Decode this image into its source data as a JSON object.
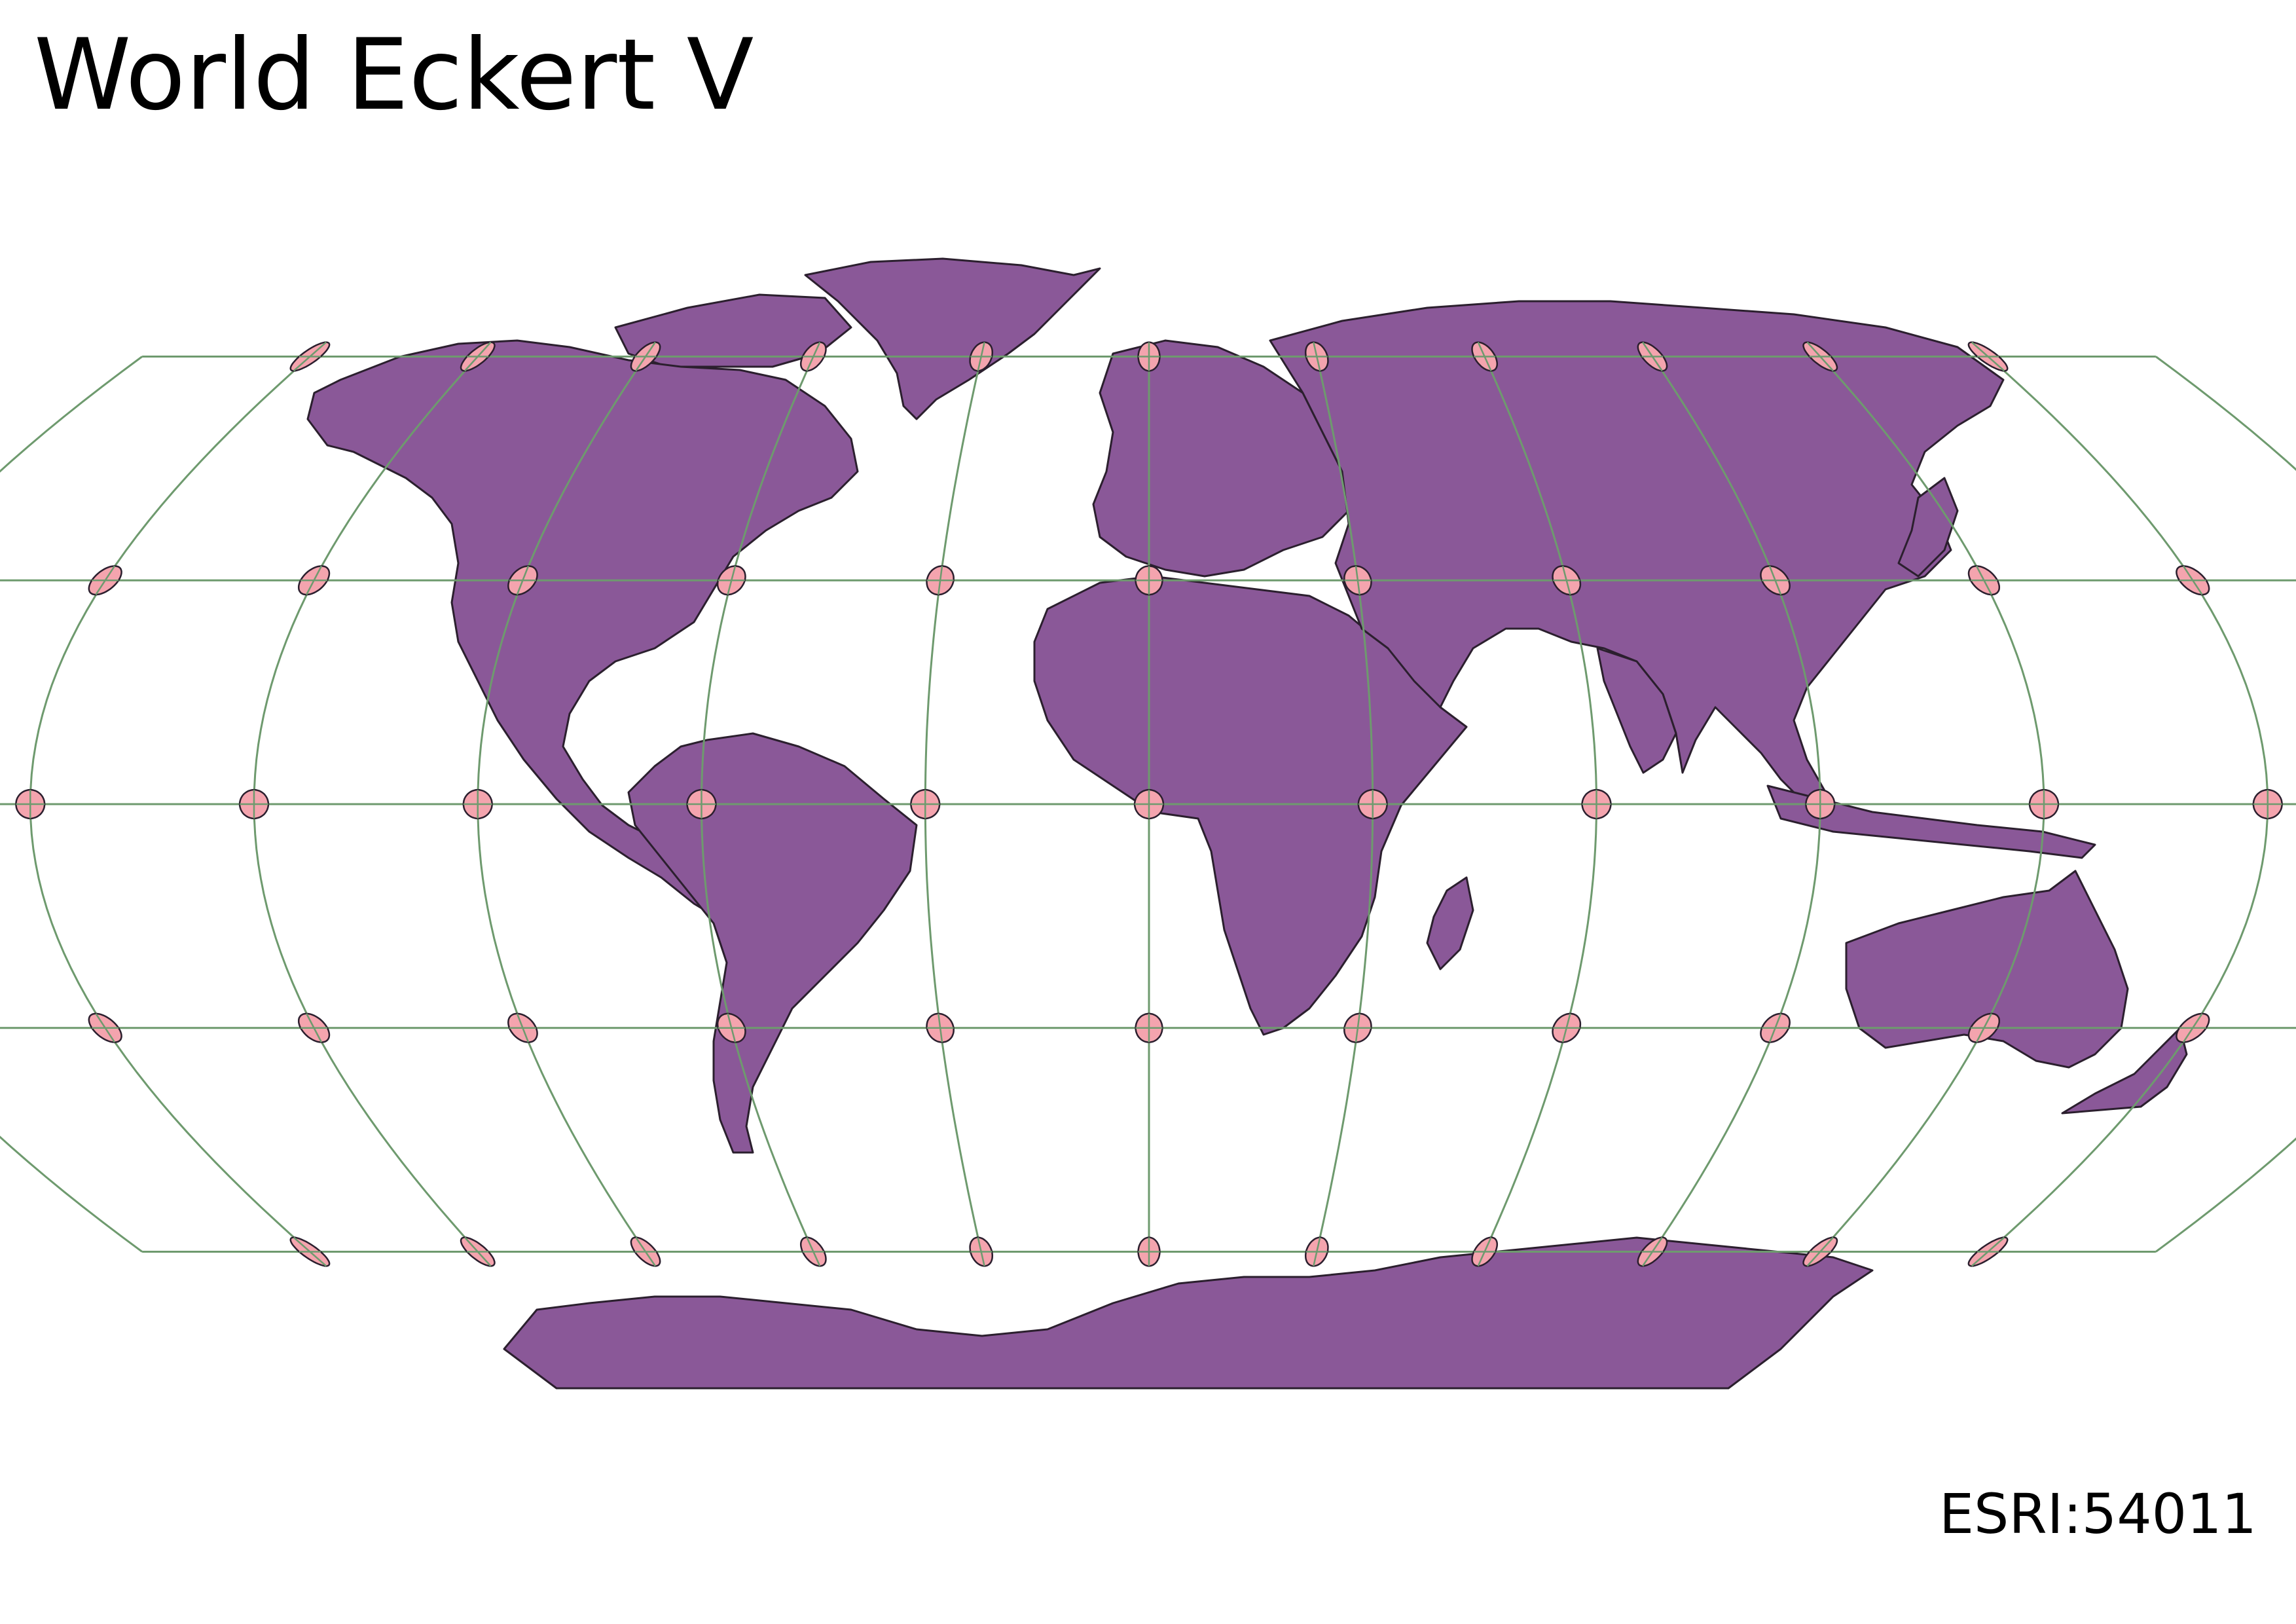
{
  "title": "World Eckert V",
  "crs_code": "ESRI:54011",
  "colors": {
    "land": "#8a5898",
    "border": "#2b1f2e",
    "graticule": "#6e9a6e",
    "indicatrix": "#f4a4ae",
    "background": "#ffffff"
  },
  "graticule": {
    "meridians_deg": [
      -150,
      -120,
      -90,
      -60,
      -30,
      0,
      30,
      60,
      90,
      120,
      150,
      180
    ],
    "parallels_deg": [
      -60,
      -30,
      0,
      30,
      60
    ]
  },
  "indicatrix": {
    "longitudes_deg": [
      -150,
      -120,
      -90,
      -60,
      -30,
      0,
      30,
      60,
      90,
      120,
      150
    ],
    "latitudes_deg": [
      60,
      30,
      0,
      -30,
      -60
    ]
  }
}
